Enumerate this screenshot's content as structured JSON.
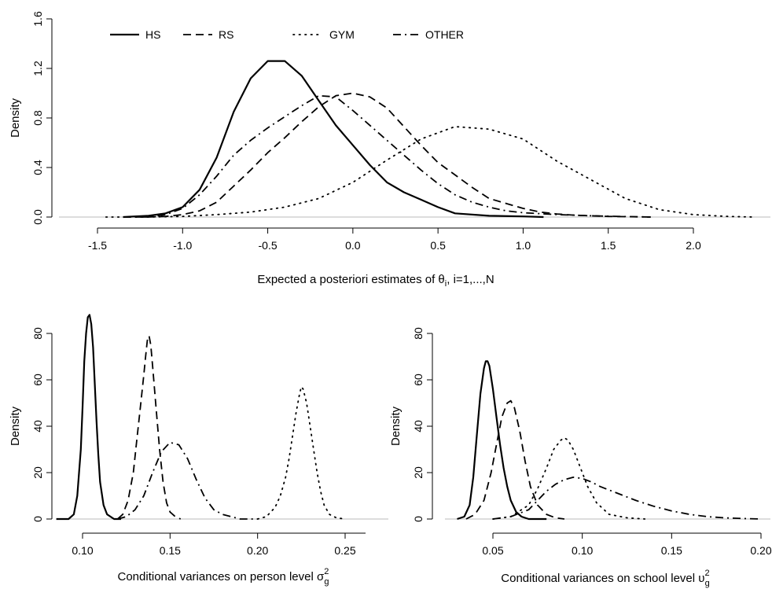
{
  "styles": {
    "HS": "solid",
    "RS": "dashed",
    "GYM": "dotted",
    "OTHER": "dashdot"
  },
  "chart_data": [
    {
      "type": "line",
      "panel": "top",
      "xlabel_prefix": "Expected a posteriori estimates of θ",
      "xlabel_sub": "i",
      "xlabel_suffix": ", i=1,...,N",
      "ylabel": "Density",
      "xlim": [
        -1.5,
        2.4
      ],
      "ylim": [
        0,
        1.6
      ],
      "xticks": [
        -1.5,
        -1.0,
        -0.5,
        0.0,
        0.5,
        1.0,
        1.5,
        2.0
      ],
      "xtick_labels": [
        "-1.5",
        "-1.0",
        "-0.5",
        "0.0",
        "0.5",
        "1.0",
        "1.5",
        "2.0"
      ],
      "yticks": [
        0,
        0.4,
        0.8,
        1.2,
        1.6
      ],
      "ytick_labels": [
        "0.0",
        "0.4",
        "0.8",
        "1.2",
        "1.6"
      ],
      "legend": [
        "HS",
        "RS",
        "GYM",
        "OTHER"
      ],
      "legend_position": "top-left",
      "series": [
        {
          "name": "HS",
          "x": [
            -1.35,
            -1.2,
            -1.1,
            -1.0,
            -0.9,
            -0.8,
            -0.7,
            -0.6,
            -0.5,
            -0.4,
            -0.3,
            -0.2,
            -0.1,
            0.0,
            0.1,
            0.2,
            0.3,
            0.4,
            0.5,
            0.6,
            0.8,
            1.0,
            1.12
          ],
          "y": [
            0.0,
            0.01,
            0.03,
            0.08,
            0.22,
            0.48,
            0.85,
            1.12,
            1.26,
            1.26,
            1.14,
            0.94,
            0.74,
            0.58,
            0.42,
            0.28,
            0.2,
            0.14,
            0.08,
            0.03,
            0.01,
            0.005,
            0.0
          ]
        },
        {
          "name": "RS",
          "x": [
            -1.35,
            -1.2,
            -1.1,
            -1.0,
            -0.9,
            -0.8,
            -0.7,
            -0.6,
            -0.5,
            -0.4,
            -0.3,
            -0.2,
            -0.1,
            0.0,
            0.1,
            0.2,
            0.3,
            0.4,
            0.5,
            0.6,
            0.7,
            0.8,
            0.9,
            1.0,
            1.1,
            1.2,
            1.3,
            1.4,
            1.5,
            1.6,
            1.75
          ],
          "y": [
            0.0,
            0.0,
            0.005,
            0.02,
            0.05,
            0.12,
            0.25,
            0.38,
            0.52,
            0.64,
            0.77,
            0.89,
            0.98,
            1.0,
            0.97,
            0.88,
            0.73,
            0.58,
            0.44,
            0.34,
            0.24,
            0.15,
            0.11,
            0.07,
            0.04,
            0.025,
            0.015,
            0.01,
            0.005,
            0.003,
            0.0
          ]
        },
        {
          "name": "GYM",
          "x": [
            -1.45,
            -1.2,
            -1.0,
            -0.8,
            -0.6,
            -0.4,
            -0.2,
            0.0,
            0.2,
            0.4,
            0.6,
            0.8,
            1.0,
            1.2,
            1.4,
            1.6,
            1.8,
            2.0,
            2.2,
            2.35
          ],
          "y": [
            0.0,
            0.0,
            0.005,
            0.02,
            0.04,
            0.08,
            0.15,
            0.28,
            0.46,
            0.63,
            0.73,
            0.71,
            0.63,
            0.45,
            0.3,
            0.15,
            0.06,
            0.02,
            0.005,
            0.0
          ]
        },
        {
          "name": "OTHER",
          "x": [
            -1.35,
            -1.2,
            -1.1,
            -1.0,
            -0.9,
            -0.8,
            -0.7,
            -0.6,
            -0.5,
            -0.4,
            -0.3,
            -0.2,
            -0.1,
            0.0,
            0.1,
            0.2,
            0.3,
            0.4,
            0.5,
            0.6,
            0.7,
            0.8,
            0.9,
            1.0,
            1.2,
            1.4,
            1.6,
            1.75
          ],
          "y": [
            0.0,
            0.0,
            0.02,
            0.07,
            0.18,
            0.33,
            0.5,
            0.62,
            0.72,
            0.81,
            0.9,
            0.98,
            0.97,
            0.86,
            0.74,
            0.62,
            0.5,
            0.38,
            0.27,
            0.18,
            0.12,
            0.08,
            0.05,
            0.035,
            0.02,
            0.01,
            0.004,
            0.0
          ]
        }
      ]
    },
    {
      "type": "line",
      "panel": "bottom-left",
      "xlabel_prefix": "Conditional variances on person level σ",
      "xlabel_sub": "g",
      "xlabel_sup": "2",
      "ylabel": "Density",
      "xlim": [
        0.075,
        0.265
      ],
      "ylim": [
        0,
        80
      ],
      "xticks": [
        0.1,
        0.15,
        0.2,
        0.25
      ],
      "xtick_labels": [
        "0.10",
        "0.15",
        "0.20",
        "0.25"
      ],
      "yticks": [
        0,
        20,
        40,
        60,
        80
      ],
      "ytick_labels": [
        "0",
        "20",
        "40",
        "60",
        "80"
      ],
      "series": [
        {
          "name": "HS",
          "x": [
            0.085,
            0.092,
            0.095,
            0.097,
            0.099,
            0.1,
            0.101,
            0.102,
            0.103,
            0.104,
            0.105,
            0.106,
            0.107,
            0.108,
            0.109,
            0.11,
            0.112,
            0.114,
            0.116,
            0.118,
            0.122
          ],
          "y": [
            0.0,
            0.0,
            2,
            10,
            30,
            48,
            68,
            80,
            87,
            88,
            84,
            74,
            58,
            42,
            28,
            16,
            6,
            2,
            1,
            0,
            0
          ]
        },
        {
          "name": "RS",
          "x": [
            0.12,
            0.123,
            0.126,
            0.129,
            0.131,
            0.133,
            0.135,
            0.136,
            0.137,
            0.138,
            0.139,
            0.14,
            0.142,
            0.144,
            0.146,
            0.148,
            0.15,
            0.153,
            0.156
          ],
          "y": [
            0,
            2,
            8,
            20,
            34,
            48,
            62,
            70,
            77,
            79,
            75,
            66,
            48,
            30,
            16,
            7,
            3,
            1,
            0
          ]
        },
        {
          "name": "GYM",
          "x": [
            0.2,
            0.205,
            0.21,
            0.213,
            0.216,
            0.218,
            0.22,
            0.222,
            0.224,
            0.225,
            0.226,
            0.228,
            0.23,
            0.232,
            0.234,
            0.236,
            0.238,
            0.241,
            0.245,
            0.25
          ],
          "y": [
            0,
            1,
            5,
            10,
            18,
            26,
            36,
            46,
            54,
            57,
            56,
            50,
            40,
            30,
            20,
            12,
            6,
            2,
            0.5,
            0
          ]
        },
        {
          "name": "OTHER",
          "x": [
            0.12,
            0.125,
            0.13,
            0.135,
            0.14,
            0.145,
            0.15,
            0.155,
            0.16,
            0.165,
            0.17,
            0.175,
            0.18,
            0.185,
            0.19,
            0.2
          ],
          "y": [
            0,
            1,
            4,
            10,
            20,
            29,
            33,
            32,
            26,
            17,
            9,
            4,
            2,
            1,
            0,
            0
          ]
        }
      ]
    },
    {
      "type": "line",
      "panel": "bottom-right",
      "xlabel_prefix": "Conditional variances on school level υ",
      "xlabel_sub": "g",
      "xlabel_sup": "2",
      "ylabel": "Density",
      "xlim": [
        0.025,
        0.205
      ],
      "ylim": [
        0,
        80
      ],
      "xticks": [
        0.05,
        0.1,
        0.15,
        0.2
      ],
      "xtick_labels": [
        "0.05",
        "0.10",
        "0.15",
        "0.20"
      ],
      "yticks": [
        0,
        20,
        40,
        60,
        80
      ],
      "ytick_labels": [
        "0",
        "20",
        "40",
        "60",
        "80"
      ],
      "series": [
        {
          "name": "HS",
          "x": [
            0.03,
            0.034,
            0.037,
            0.039,
            0.041,
            0.043,
            0.045,
            0.046,
            0.047,
            0.048,
            0.05,
            0.052,
            0.054,
            0.056,
            0.058,
            0.06,
            0.063,
            0.066,
            0.07,
            0.08
          ],
          "y": [
            0,
            1,
            6,
            18,
            36,
            54,
            65,
            68,
            68,
            66,
            56,
            44,
            32,
            22,
            14,
            8,
            3,
            1,
            0,
            0
          ]
        },
        {
          "name": "RS",
          "x": [
            0.035,
            0.04,
            0.045,
            0.049,
            0.052,
            0.055,
            0.058,
            0.06,
            0.062,
            0.065,
            0.068,
            0.071,
            0.075,
            0.08,
            0.085,
            0.09
          ],
          "y": [
            0,
            2,
            8,
            20,
            32,
            44,
            50,
            51,
            48,
            38,
            25,
            14,
            6,
            2,
            0.5,
            0
          ]
        },
        {
          "name": "GYM",
          "x": [
            0.05,
            0.06,
            0.07,
            0.075,
            0.08,
            0.084,
            0.088,
            0.09,
            0.092,
            0.095,
            0.099,
            0.103,
            0.108,
            0.115,
            0.125,
            0.135
          ],
          "y": [
            0,
            1,
            6,
            13,
            22,
            30,
            34,
            35,
            34,
            30,
            22,
            14,
            7,
            2,
            0.5,
            0
          ]
        },
        {
          "name": "OTHER",
          "x": [
            0.05,
            0.06,
            0.07,
            0.075,
            0.08,
            0.085,
            0.09,
            0.095,
            0.1,
            0.105,
            0.11,
            0.12,
            0.13,
            0.14,
            0.15,
            0.16,
            0.17,
            0.18,
            0.19,
            0.2
          ],
          "y": [
            0,
            1,
            4,
            8,
            12,
            15,
            17,
            18,
            17.5,
            16,
            14,
            11,
            8,
            5.5,
            3.5,
            2,
            1,
            0.5,
            0.2,
            0
          ]
        }
      ]
    }
  ]
}
